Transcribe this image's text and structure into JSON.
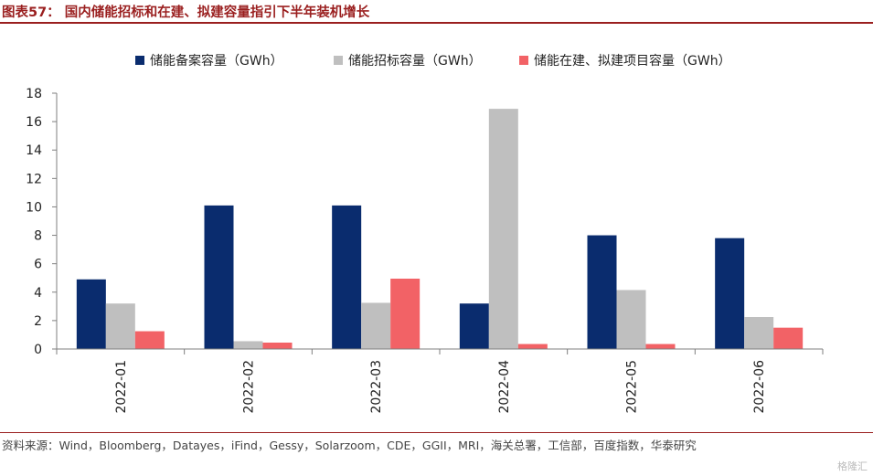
{
  "header": {
    "title": "图表57： 国内储能招标和在建、拟建容量指引下半年装机增长"
  },
  "footer": {
    "source": "资料来源：Wind，Bloomberg，Datayes，iFind，Gessy，Solarzoom，CDE，GGII，MRI，海关总署，工信部，百度指数，华泰研究",
    "watermark": "格隆汇"
  },
  "chart_data": {
    "type": "bar",
    "categories": [
      "2022-01",
      "2022-02",
      "2022-03",
      "2022-04",
      "2022-05",
      "2022-06"
    ],
    "series": [
      {
        "name": "储能备案容量（GWh）",
        "color": "#0a2c6e",
        "values": [
          4.9,
          10.1,
          10.1,
          3.2,
          8.0,
          7.8
        ]
      },
      {
        "name": "储能招标容量（GWh）",
        "color": "#bfbfbf",
        "values": [
          3.2,
          0.55,
          3.25,
          16.9,
          4.15,
          2.25
        ]
      },
      {
        "name": "储能在建、拟建项目容量（GWh）",
        "color": "#f26266",
        "values": [
          1.25,
          0.45,
          4.95,
          0.35,
          0.35,
          1.5
        ]
      }
    ],
    "ylim": [
      0,
      18
    ],
    "yticks": [
      "0",
      "2",
      "4",
      "6",
      "8",
      "10",
      "12",
      "14",
      "16",
      "18"
    ],
    "grid": false,
    "legend": "top"
  }
}
